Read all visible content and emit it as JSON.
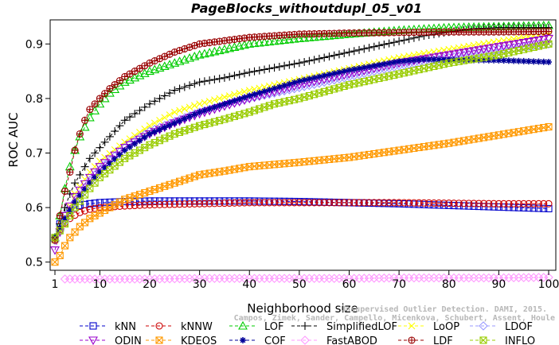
{
  "chart_data": {
    "type": "line",
    "title": "PageBlocks_withoutdupl_05_v01",
    "xlabel": "Neighborhood size",
    "ylabel": "ROC AUC",
    "xlim": [
      1,
      100
    ],
    "ylim": [
      0.45,
      0.95
    ],
    "xticks": [
      1,
      10,
      20,
      30,
      40,
      50,
      60,
      70,
      80,
      90,
      100
    ],
    "yticks": [
      0.5,
      0.6,
      0.7,
      0.8,
      0.9
    ],
    "ytick_labels": [
      "0.5",
      "0.6",
      "0.7",
      "0.8",
      "0.9"
    ],
    "legend_position": "bottom",
    "watermark": {
      "line1": "Unsupervised Outlier Detection. DAMI, 2015.",
      "line2": "Campos, Zimek, Sander, Campello, Micenkova, Schubert, Assent, Houle"
    },
    "series": [
      {
        "name": "kNN",
        "color": "#0000cc",
        "marker": "square",
        "points": [
          [
            1,
            0.543
          ],
          [
            2,
            0.57
          ],
          [
            3,
            0.585
          ],
          [
            4,
            0.595
          ],
          [
            5,
            0.6
          ],
          [
            6,
            0.604
          ],
          [
            8,
            0.607
          ],
          [
            10,
            0.609
          ],
          [
            15,
            0.611
          ],
          [
            20,
            0.612
          ],
          [
            30,
            0.612
          ],
          [
            40,
            0.612
          ],
          [
            50,
            0.611
          ],
          [
            60,
            0.609
          ],
          [
            70,
            0.607
          ],
          [
            80,
            0.604
          ],
          [
            90,
            0.601
          ],
          [
            100,
            0.598
          ]
        ]
      },
      {
        "name": "kNNW",
        "color": "#cc0000",
        "marker": "circle",
        "points": [
          [
            1,
            0.543
          ],
          [
            2,
            0.56
          ],
          [
            3,
            0.572
          ],
          [
            4,
            0.58
          ],
          [
            5,
            0.586
          ],
          [
            6,
            0.591
          ],
          [
            8,
            0.597
          ],
          [
            10,
            0.6
          ],
          [
            15,
            0.603
          ],
          [
            20,
            0.605
          ],
          [
            30,
            0.607
          ],
          [
            40,
            0.609
          ],
          [
            50,
            0.609
          ],
          [
            60,
            0.609
          ],
          [
            70,
            0.609
          ],
          [
            80,
            0.608
          ],
          [
            90,
            0.607
          ],
          [
            100,
            0.607
          ]
        ]
      },
      {
        "name": "LOF",
        "color": "#00cc00",
        "marker": "triangle-up",
        "points": [
          [
            1,
            0.545
          ],
          [
            2,
            0.585
          ],
          [
            3,
            0.635
          ],
          [
            4,
            0.675
          ],
          [
            5,
            0.705
          ],
          [
            6,
            0.73
          ],
          [
            8,
            0.765
          ],
          [
            10,
            0.79
          ],
          [
            12,
            0.81
          ],
          [
            15,
            0.83
          ],
          [
            20,
            0.85
          ],
          [
            25,
            0.865
          ],
          [
            30,
            0.88
          ],
          [
            35,
            0.89
          ],
          [
            40,
            0.9
          ],
          [
            50,
            0.91
          ],
          [
            60,
            0.918
          ],
          [
            70,
            0.925
          ],
          [
            80,
            0.93
          ],
          [
            90,
            0.932
          ],
          [
            100,
            0.934
          ]
        ]
      },
      {
        "name": "SimplifiedLOF",
        "color": "#000000",
        "marker": "plus",
        "points": [
          [
            1,
            0.545
          ],
          [
            2,
            0.57
          ],
          [
            3,
            0.6
          ],
          [
            4,
            0.625
          ],
          [
            5,
            0.645
          ],
          [
            6,
            0.66
          ],
          [
            8,
            0.69
          ],
          [
            10,
            0.71
          ],
          [
            12,
            0.73
          ],
          [
            15,
            0.76
          ],
          [
            20,
            0.79
          ],
          [
            25,
            0.815
          ],
          [
            30,
            0.83
          ],
          [
            35,
            0.838
          ],
          [
            40,
            0.848
          ],
          [
            50,
            0.865
          ],
          [
            55,
            0.875
          ],
          [
            60,
            0.885
          ],
          [
            65,
            0.895
          ],
          [
            70,
            0.905
          ],
          [
            75,
            0.915
          ],
          [
            80,
            0.922
          ],
          [
            85,
            0.928
          ],
          [
            90,
            0.93
          ],
          [
            100,
            0.93
          ]
        ]
      },
      {
        "name": "LoOP",
        "color": "#ffff00",
        "marker": "x",
        "points": [
          [
            1,
            0.54
          ],
          [
            3,
            0.58
          ],
          [
            5,
            0.625
          ],
          [
            8,
            0.665
          ],
          [
            10,
            0.685
          ],
          [
            15,
            0.72
          ],
          [
            20,
            0.75
          ],
          [
            25,
            0.775
          ],
          [
            30,
            0.79
          ],
          [
            40,
            0.815
          ],
          [
            50,
            0.835
          ],
          [
            60,
            0.855
          ],
          [
            70,
            0.875
          ],
          [
            80,
            0.89
          ],
          [
            90,
            0.905
          ],
          [
            100,
            0.918
          ]
        ]
      },
      {
        "name": "LDOF",
        "color": "#9999ff",
        "marker": "diamond",
        "points": [
          [
            1,
            0.54
          ],
          [
            3,
            0.575
          ],
          [
            5,
            0.61
          ],
          [
            8,
            0.65
          ],
          [
            10,
            0.67
          ],
          [
            15,
            0.71
          ],
          [
            20,
            0.74
          ],
          [
            30,
            0.775
          ],
          [
            40,
            0.8
          ],
          [
            50,
            0.82
          ],
          [
            60,
            0.84
          ],
          [
            70,
            0.86
          ],
          [
            80,
            0.875
          ],
          [
            90,
            0.89
          ],
          [
            100,
            0.9
          ]
        ]
      },
      {
        "name": "ODIN",
        "color": "#9900cc",
        "marker": "triangle-down",
        "points": [
          [
            1,
            0.522
          ],
          [
            2,
            0.555
          ],
          [
            3,
            0.585
          ],
          [
            5,
            0.62
          ],
          [
            8,
            0.655
          ],
          [
            10,
            0.675
          ],
          [
            15,
            0.71
          ],
          [
            20,
            0.735
          ],
          [
            25,
            0.755
          ],
          [
            30,
            0.772
          ],
          [
            40,
            0.8
          ],
          [
            50,
            0.825
          ],
          [
            60,
            0.845
          ],
          [
            70,
            0.865
          ],
          [
            80,
            0.88
          ],
          [
            90,
            0.895
          ],
          [
            100,
            0.91
          ]
        ]
      },
      {
        "name": "KDEOS",
        "color": "#ff9900",
        "marker": "square-x",
        "points": [
          [
            1,
            0.5
          ],
          [
            2,
            0.512
          ],
          [
            3,
            0.53
          ],
          [
            4,
            0.545
          ],
          [
            5,
            0.555
          ],
          [
            6,
            0.565
          ],
          [
            8,
            0.58
          ],
          [
            10,
            0.59
          ],
          [
            12,
            0.6
          ],
          [
            15,
            0.615
          ],
          [
            20,
            0.63
          ],
          [
            25,
            0.645
          ],
          [
            30,
            0.66
          ],
          [
            35,
            0.667
          ],
          [
            40,
            0.675
          ],
          [
            50,
            0.683
          ],
          [
            60,
            0.692
          ],
          [
            70,
            0.705
          ],
          [
            80,
            0.718
          ],
          [
            90,
            0.733
          ],
          [
            100,
            0.748
          ]
        ]
      },
      {
        "name": "COF",
        "color": "#000099",
        "marker": "asterisk",
        "points": [
          [
            1,
            0.545
          ],
          [
            3,
            0.58
          ],
          [
            5,
            0.61
          ],
          [
            8,
            0.645
          ],
          [
            10,
            0.665
          ],
          [
            15,
            0.705
          ],
          [
            20,
            0.735
          ],
          [
            30,
            0.775
          ],
          [
            40,
            0.805
          ],
          [
            50,
            0.832
          ],
          [
            60,
            0.852
          ],
          [
            70,
            0.868
          ],
          [
            75,
            0.872
          ],
          [
            80,
            0.871
          ],
          [
            90,
            0.87
          ],
          [
            100,
            0.867
          ]
        ]
      },
      {
        "name": "FastABOD",
        "color": "#ff99ff",
        "marker": "diamond",
        "points": [
          [
            3,
            0.469
          ],
          [
            10,
            0.469
          ],
          [
            20,
            0.469
          ],
          [
            30,
            0.47
          ],
          [
            40,
            0.47
          ],
          [
            50,
            0.47
          ],
          [
            60,
            0.47
          ],
          [
            70,
            0.471
          ],
          [
            80,
            0.471
          ],
          [
            90,
            0.471
          ],
          [
            100,
            0.472
          ]
        ]
      },
      {
        "name": "LDF",
        "color": "#990000",
        "marker": "circle-plus",
        "points": [
          [
            1,
            0.54
          ],
          [
            2,
            0.585
          ],
          [
            3,
            0.63
          ],
          [
            4,
            0.665
          ],
          [
            5,
            0.705
          ],
          [
            6,
            0.735
          ],
          [
            7,
            0.76
          ],
          [
            8,
            0.78
          ],
          [
            10,
            0.8
          ],
          [
            12,
            0.818
          ],
          [
            15,
            0.84
          ],
          [
            20,
            0.865
          ],
          [
            25,
            0.885
          ],
          [
            30,
            0.9
          ],
          [
            40,
            0.912
          ],
          [
            50,
            0.918
          ],
          [
            60,
            0.92
          ],
          [
            70,
            0.921
          ],
          [
            80,
            0.922
          ],
          [
            90,
            0.922
          ],
          [
            100,
            0.923
          ]
        ]
      },
      {
        "name": "INFLO",
        "color": "#99cc00",
        "marker": "square-x",
        "points": [
          [
            1,
            0.545
          ],
          [
            3,
            0.57
          ],
          [
            5,
            0.6
          ],
          [
            8,
            0.635
          ],
          [
            10,
            0.655
          ],
          [
            15,
            0.69
          ],
          [
            20,
            0.715
          ],
          [
            25,
            0.735
          ],
          [
            30,
            0.75
          ],
          [
            35,
            0.762
          ],
          [
            40,
            0.775
          ],
          [
            45,
            0.79
          ],
          [
            50,
            0.8
          ],
          [
            60,
            0.825
          ],
          [
            70,
            0.845
          ],
          [
            80,
            0.865
          ],
          [
            90,
            0.88
          ],
          [
            100,
            0.9
          ]
        ]
      }
    ]
  }
}
